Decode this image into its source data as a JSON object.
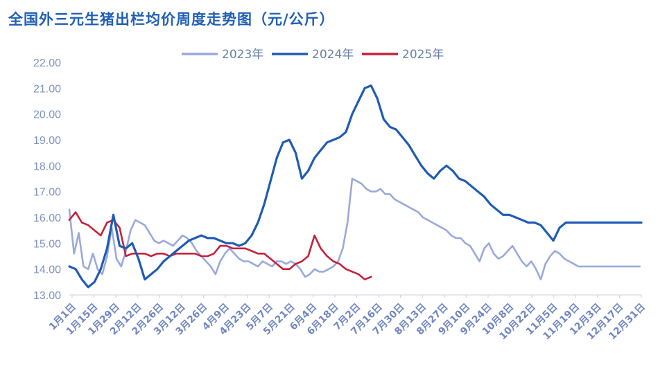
{
  "chart_data": {
    "type": "line",
    "title": "全国外三元生猪出栏均价周度走势图（元/公斤）",
    "ylim": [
      13.0,
      22.0
    ],
    "y_ticks": [
      "13.00",
      "14.00",
      "15.00",
      "16.00",
      "17.00",
      "18.00",
      "19.00",
      "20.00",
      "21.00",
      "22.00"
    ],
    "y_tick_values": [
      13,
      14,
      15,
      16,
      17,
      18,
      19,
      20,
      21,
      22
    ],
    "categories": [
      "1月1日",
      "1月15日",
      "1月29日",
      "2月12日",
      "2月26日",
      "3月12日",
      "3月26日",
      "4月9日",
      "4月23日",
      "5月7日",
      "5月21日",
      "6月4日",
      "6月18日",
      "7月2日",
      "7月16日",
      "7月30日",
      "8月13日",
      "8月27日",
      "9月10日",
      "9月24日",
      "10月8日",
      "10月22日",
      "11月5日",
      "11月19日",
      "12月3日",
      "12月17日",
      "12月31日"
    ],
    "x_domain": [
      0,
      364
    ],
    "grid": false,
    "legend_position": "top",
    "series": [
      {
        "name": "2023年",
        "color": "#9aa9da",
        "x": [
          0,
          3,
          6,
          9,
          12,
          15,
          18,
          21,
          24,
          27,
          30,
          33,
          36,
          39,
          42,
          45,
          48,
          51,
          54,
          57,
          60,
          63,
          66,
          69,
          72,
          75,
          78,
          81,
          84,
          87,
          90,
          93,
          96,
          99,
          102,
          105,
          108,
          111,
          114,
          117,
          120,
          123,
          126,
          129,
          132,
          135,
          138,
          141,
          144,
          147,
          150,
          153,
          156,
          159,
          162,
          165,
          168,
          171,
          174,
          177,
          180,
          183,
          186,
          189,
          192,
          195,
          198,
          201,
          204,
          207,
          210,
          213,
          216,
          219,
          222,
          225,
          228,
          231,
          234,
          237,
          240,
          243,
          246,
          249,
          252,
          255,
          258,
          261,
          264,
          267,
          270,
          273,
          276,
          279,
          282,
          285,
          288,
          291,
          294,
          297,
          300,
          303,
          306,
          309,
          312,
          315,
          318,
          321,
          324,
          327,
          330,
          333,
          336,
          339,
          342,
          345,
          348,
          351,
          354,
          357,
          360,
          363
        ],
        "values": [
          16.3,
          14.6,
          15.4,
          14.1,
          14.0,
          14.6,
          14.0,
          13.8,
          14.5,
          15.6,
          14.4,
          14.1,
          14.7,
          15.5,
          15.9,
          15.8,
          15.7,
          15.4,
          15.1,
          15.0,
          15.1,
          15.0,
          14.9,
          15.1,
          15.3,
          15.2,
          15.0,
          14.7,
          14.5,
          14.3,
          14.1,
          13.8,
          14.3,
          14.6,
          14.8,
          14.6,
          14.4,
          14.3,
          14.3,
          14.2,
          14.1,
          14.3,
          14.2,
          14.1,
          14.3,
          14.3,
          14.2,
          14.3,
          14.2,
          14.0,
          13.7,
          13.8,
          14.0,
          13.9,
          13.9,
          14.0,
          14.1,
          14.3,
          14.8,
          15.8,
          17.5,
          17.4,
          17.3,
          17.1,
          17.0,
          17.0,
          17.1,
          16.9,
          16.9,
          16.7,
          16.6,
          16.5,
          16.4,
          16.3,
          16.2,
          16.0,
          15.9,
          15.8,
          15.7,
          15.6,
          15.5,
          15.3,
          15.2,
          15.2,
          15.0,
          14.9,
          14.6,
          14.3,
          14.8,
          15.0,
          14.6,
          14.4,
          14.5,
          14.7,
          14.9,
          14.6,
          14.3,
          14.1,
          14.3,
          14.0,
          13.6,
          14.2,
          14.5,
          14.7,
          14.6,
          14.4,
          14.3,
          14.2,
          14.1,
          14.1,
          14.1,
          14.1,
          14.1,
          14.1,
          14.1,
          14.1,
          14.1,
          14.1,
          14.1,
          14.1,
          14.1,
          14.1
        ]
      },
      {
        "name": "2024年",
        "color": "#1f5bb5",
        "x": [
          0,
          4,
          8,
          12,
          16,
          20,
          24,
          28,
          32,
          36,
          40,
          44,
          48,
          52,
          56,
          60,
          64,
          68,
          72,
          76,
          80,
          84,
          88,
          92,
          96,
          100,
          104,
          108,
          112,
          116,
          120,
          124,
          128,
          132,
          136,
          140,
          144,
          148,
          152,
          156,
          160,
          164,
          168,
          172,
          176,
          180,
          184,
          188,
          192,
          196,
          200,
          204,
          208,
          212,
          216,
          220,
          224,
          228,
          232,
          236,
          240,
          244,
          248,
          252,
          256,
          260,
          264,
          268,
          272,
          276,
          280,
          284,
          288,
          292,
          296,
          300,
          304,
          308,
          312,
          316,
          320,
          324,
          328,
          332,
          336,
          340,
          344,
          348,
          352,
          356,
          360,
          364
        ],
        "values": [
          14.1,
          14.0,
          13.6,
          13.3,
          13.5,
          14.0,
          14.8,
          16.1,
          14.9,
          14.8,
          15.0,
          14.4,
          13.6,
          13.8,
          14.0,
          14.3,
          14.5,
          14.7,
          14.9,
          15.1,
          15.2,
          15.3,
          15.2,
          15.2,
          15.1,
          15.0,
          15.0,
          14.9,
          15.0,
          15.3,
          15.8,
          16.5,
          17.4,
          18.3,
          18.9,
          19.0,
          18.5,
          17.5,
          17.8,
          18.3,
          18.6,
          18.9,
          19.0,
          19.1,
          19.3,
          20.0,
          20.5,
          21.0,
          21.1,
          20.6,
          19.8,
          19.5,
          19.4,
          19.1,
          18.8,
          18.4,
          18.0,
          17.7,
          17.5,
          17.8,
          18.0,
          17.8,
          17.5,
          17.4,
          17.2,
          17.0,
          16.8,
          16.5,
          16.3,
          16.1,
          16.1,
          16.0,
          15.9,
          15.8,
          15.8,
          15.7,
          15.4,
          15.1,
          15.6,
          15.8,
          15.8,
          15.8,
          15.8,
          15.8,
          15.8,
          15.8,
          15.8,
          15.8,
          15.8,
          15.8,
          15.8,
          15.8
        ]
      },
      {
        "name": "2025年",
        "color": "#c4213b",
        "x": [
          0,
          4,
          8,
          12,
          16,
          20,
          24,
          28,
          32,
          36,
          40,
          44,
          48,
          52,
          56,
          60,
          64,
          68,
          72,
          76,
          80,
          84,
          88,
          92,
          96,
          100,
          104,
          108,
          112,
          116,
          120,
          124,
          128,
          132,
          136,
          140,
          144,
          148,
          152,
          156,
          160,
          164,
          168,
          172,
          176,
          180,
          184,
          188,
          192
        ],
        "values": [
          15.9,
          16.2,
          15.8,
          15.7,
          15.5,
          15.3,
          15.8,
          15.9,
          15.6,
          14.5,
          14.6,
          14.6,
          14.6,
          14.5,
          14.6,
          14.6,
          14.5,
          14.6,
          14.6,
          14.6,
          14.6,
          14.5,
          14.5,
          14.6,
          14.9,
          14.9,
          14.8,
          14.8,
          14.8,
          14.7,
          14.6,
          14.6,
          14.4,
          14.2,
          14.0,
          14.0,
          14.2,
          14.3,
          14.5,
          15.3,
          14.8,
          14.5,
          14.3,
          14.2,
          14.0,
          13.9,
          13.8,
          13.6,
          13.7
        ]
      }
    ]
  }
}
